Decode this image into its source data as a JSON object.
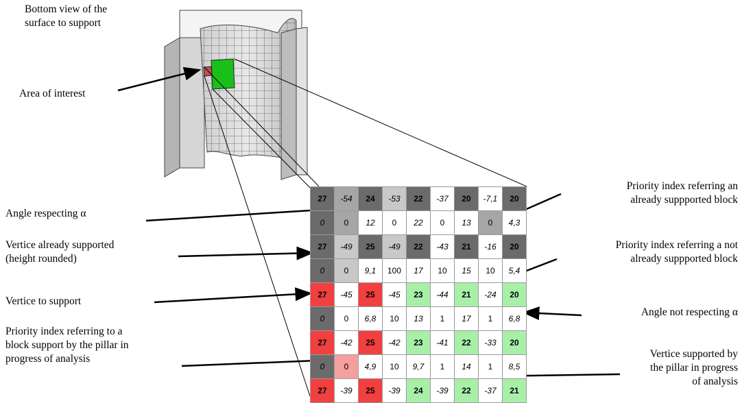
{
  "labels": {
    "bottom_view": [
      "Bottom view of the",
      "surface to support"
    ],
    "area": "Area of interest",
    "angle_respecting": "Angle respecting α",
    "vertice_supported": [
      "Vertice already supported",
      "(height rounded)"
    ],
    "vertice_to_support": "Vertice to support",
    "priority_pillar": [
      "Priority index referring to a",
      "block support by the pillar in",
      "progress of analysis"
    ],
    "priority_supported": [
      "Priority index referring an",
      "already suppported block"
    ],
    "priority_not_supported": [
      "Priority index referring a not",
      "already suppported block"
    ],
    "angle_not_respecting": "Angle not respecting α",
    "vertice_pillar": [
      "Vertice supported by",
      "the pillar in progress",
      "of analysis"
    ]
  },
  "colors": {
    "dark_gray": "#6b6b6b",
    "mid_gray": "#a6a6a6",
    "light_gray": "#c8c8c8",
    "red": "#f24040",
    "pink": "#f4a0a0",
    "light_green": "#a8f0a8",
    "white": "#ffffff"
  },
  "grid": [
    [
      [
        "27",
        "dark",
        "b"
      ],
      [
        "-54",
        "mid",
        "i"
      ],
      [
        "24",
        "dark",
        "b"
      ],
      [
        "-53",
        "light",
        "i"
      ],
      [
        "22",
        "dark",
        "b"
      ],
      [
        "-37",
        "white",
        "i"
      ],
      [
        "20",
        "dark",
        "b"
      ],
      [
        "-7,1",
        "white",
        "i"
      ],
      [
        "20",
        "dark",
        "b"
      ]
    ],
    [
      [
        "0",
        "dark",
        "i"
      ],
      [
        "0",
        "mid",
        ""
      ],
      [
        "12",
        "white",
        "i"
      ],
      [
        "0",
        "white",
        ""
      ],
      [
        "22",
        "white",
        "i"
      ],
      [
        "0",
        "white",
        ""
      ],
      [
        "13",
        "white",
        "i"
      ],
      [
        "0",
        "mid",
        ""
      ],
      [
        "4,3",
        "white",
        "i"
      ]
    ],
    [
      [
        "27",
        "dark",
        "b"
      ],
      [
        "-49",
        "light",
        "i"
      ],
      [
        "25",
        "dark",
        "b"
      ],
      [
        "-49",
        "light",
        "i"
      ],
      [
        "22",
        "dark",
        "b"
      ],
      [
        "-43",
        "white",
        "i"
      ],
      [
        "21",
        "dark",
        "b"
      ],
      [
        "-16",
        "white",
        "i"
      ],
      [
        "20",
        "dark",
        "b"
      ]
    ],
    [
      [
        "0",
        "dark",
        "i"
      ],
      [
        "0",
        "light",
        ""
      ],
      [
        "9,1",
        "white",
        "i"
      ],
      [
        "100",
        "white",
        ""
      ],
      [
        "17",
        "white",
        "i"
      ],
      [
        "10",
        "white",
        ""
      ],
      [
        "15",
        "white",
        "i"
      ],
      [
        "10",
        "white",
        ""
      ],
      [
        "5,4",
        "white",
        "i"
      ]
    ],
    [
      [
        "27",
        "red",
        "b"
      ],
      [
        "-45",
        "white",
        "i"
      ],
      [
        "25",
        "red",
        "b"
      ],
      [
        "-45",
        "white",
        "i"
      ],
      [
        "23",
        "green",
        "b"
      ],
      [
        "-44",
        "white",
        "i"
      ],
      [
        "21",
        "green",
        "b"
      ],
      [
        "-24",
        "white",
        "i"
      ],
      [
        "20",
        "green",
        "b"
      ]
    ],
    [
      [
        "0",
        "dark",
        "i"
      ],
      [
        "0",
        "white",
        ""
      ],
      [
        "6,8",
        "white",
        "i"
      ],
      [
        "10",
        "white",
        ""
      ],
      [
        "13",
        "white",
        "i"
      ],
      [
        "1",
        "white",
        ""
      ],
      [
        "17",
        "white",
        "i"
      ],
      [
        "1",
        "white",
        ""
      ],
      [
        "6,8",
        "white",
        "i"
      ]
    ],
    [
      [
        "27",
        "red",
        "b"
      ],
      [
        "-42",
        "white",
        "i"
      ],
      [
        "25",
        "red",
        "b"
      ],
      [
        "-42",
        "white",
        "i"
      ],
      [
        "23",
        "green",
        "b"
      ],
      [
        "-41",
        "white",
        "i"
      ],
      [
        "22",
        "green",
        "b"
      ],
      [
        "-33",
        "white",
        "i"
      ],
      [
        "20",
        "green",
        "b"
      ]
    ],
    [
      [
        "0",
        "dark",
        "i"
      ],
      [
        "0",
        "pink",
        ""
      ],
      [
        "4,9",
        "white",
        "i"
      ],
      [
        "10",
        "white",
        ""
      ],
      [
        "9,7",
        "white",
        "i"
      ],
      [
        "1",
        "white",
        ""
      ],
      [
        "14",
        "white",
        "i"
      ],
      [
        "1",
        "white",
        ""
      ],
      [
        "8,5",
        "white",
        "i"
      ]
    ],
    [
      [
        "27",
        "red",
        "b"
      ],
      [
        "-39",
        "white",
        "i"
      ],
      [
        "25",
        "red",
        "b"
      ],
      [
        "-39",
        "white",
        "i"
      ],
      [
        "24",
        "green",
        "b"
      ],
      [
        "-39",
        "white",
        "i"
      ],
      [
        "22",
        "green",
        "b"
      ],
      [
        "-37",
        "white",
        "i"
      ],
      [
        "21",
        "green",
        "b"
      ]
    ]
  ]
}
